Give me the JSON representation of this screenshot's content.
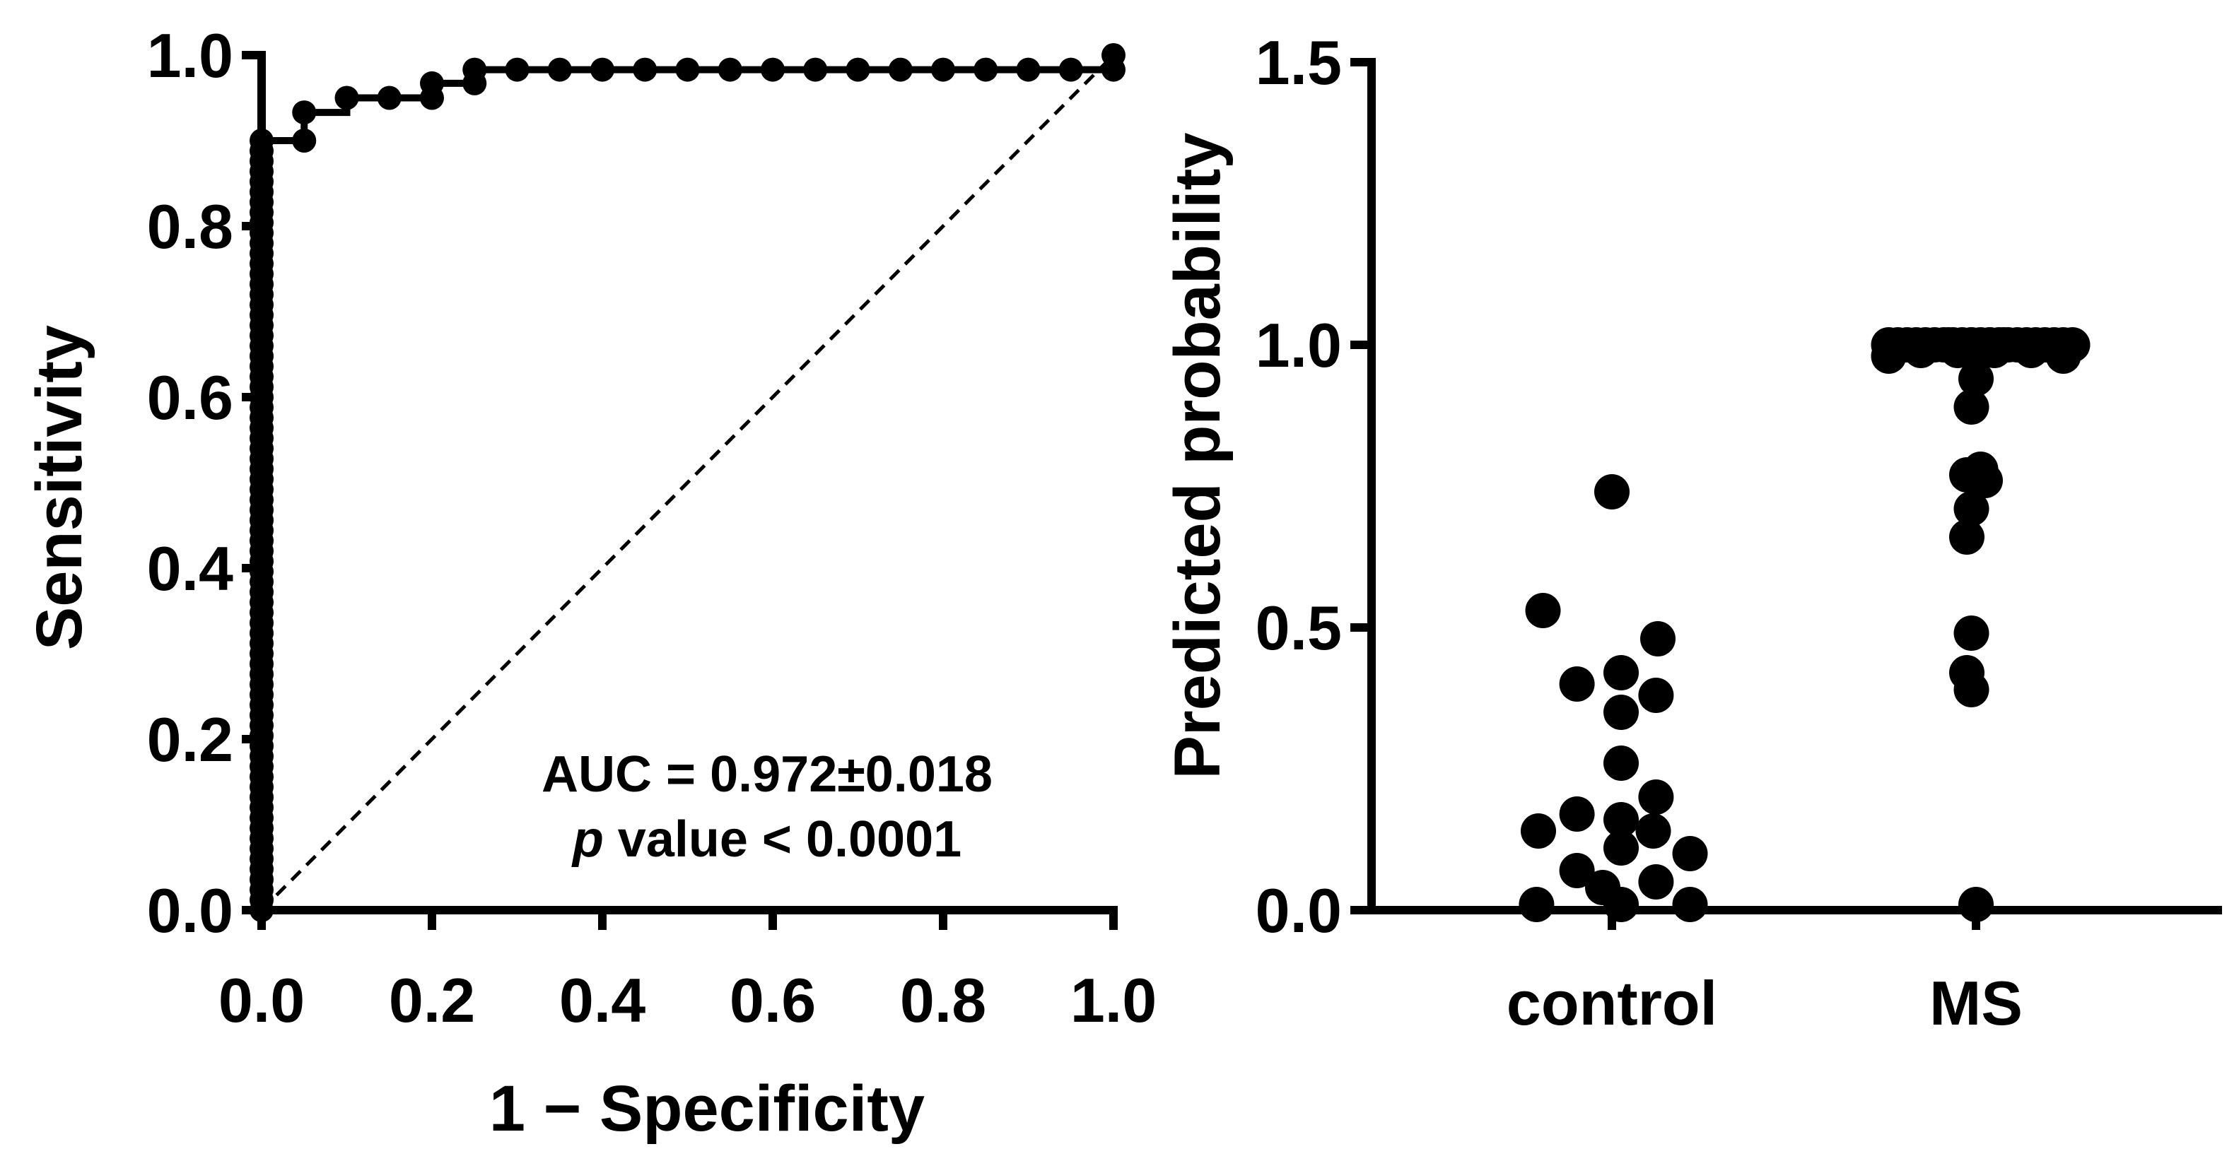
{
  "chart_data": [
    {
      "type": "line",
      "xlabel": "1 − Specificity",
      "ylabel": "Sensitivity",
      "xlim": [
        0,
        1
      ],
      "ylim": [
        0,
        1
      ],
      "xticks": [
        "0.0",
        "0.2",
        "0.4",
        "0.6",
        "0.8",
        "1.0"
      ],
      "yticks": [
        "0.0",
        "0.2",
        "0.4",
        "0.6",
        "0.8",
        "1.0"
      ],
      "annotation": {
        "auc_text": "AUC = 0.972±0.018",
        "p_italic": "p",
        "p_rest": " value < 0.0001"
      },
      "reference_line": [
        [
          0,
          0
        ],
        [
          1,
          1
        ]
      ],
      "x": [
        0,
        0,
        0,
        0,
        0,
        0,
        0,
        0,
        0,
        0,
        0,
        0,
        0,
        0,
        0,
        0,
        0,
        0,
        0,
        0,
        0,
        0,
        0,
        0,
        0,
        0,
        0,
        0,
        0,
        0,
        0,
        0,
        0,
        0,
        0,
        0,
        0,
        0,
        0,
        0,
        0,
        0,
        0,
        0,
        0,
        0,
        0,
        0,
        0,
        0,
        0,
        0,
        0,
        0,
        0,
        0,
        0,
        0,
        0,
        0,
        0,
        0,
        0,
        0,
        0,
        0,
        0,
        0,
        0,
        0,
        0,
        0,
        0,
        0,
        0,
        0,
        0.05,
        0.05,
        0.1,
        0.15,
        0.2,
        0.2,
        0.25,
        0.25,
        0.3,
        0.35,
        0.4,
        0.45,
        0.5,
        0.55,
        0.6,
        0.65,
        0.7,
        0.75,
        0.8,
        0.85,
        0.9,
        0.95,
        1.0,
        1.0
      ],
      "y": [
        0.0,
        0.012,
        0.024,
        0.036,
        0.048,
        0.06,
        0.072,
        0.084,
        0.096,
        0.108,
        0.12,
        0.132,
        0.144,
        0.156,
        0.168,
        0.18,
        0.192,
        0.204,
        0.216,
        0.228,
        0.24,
        0.252,
        0.264,
        0.276,
        0.288,
        0.3,
        0.312,
        0.324,
        0.336,
        0.348,
        0.36,
        0.372,
        0.384,
        0.396,
        0.408,
        0.42,
        0.432,
        0.444,
        0.456,
        0.468,
        0.48,
        0.492,
        0.504,
        0.516,
        0.528,
        0.54,
        0.552,
        0.564,
        0.576,
        0.588,
        0.6,
        0.612,
        0.624,
        0.636,
        0.648,
        0.66,
        0.672,
        0.684,
        0.696,
        0.708,
        0.72,
        0.732,
        0.744,
        0.756,
        0.768,
        0.78,
        0.792,
        0.804,
        0.816,
        0.828,
        0.84,
        0.852,
        0.864,
        0.876,
        0.888,
        0.9,
        0.9,
        0.933,
        0.95,
        0.95,
        0.95,
        0.967,
        0.967,
        0.983,
        0.983,
        0.983,
        0.983,
        0.983,
        0.983,
        0.983,
        0.983,
        0.983,
        0.983,
        0.983,
        0.983,
        0.983,
        0.983,
        0.983,
        0.983,
        1.0
      ]
    },
    {
      "type": "scatter",
      "ylabel": "Predicted probability",
      "ylim": [
        0,
        1.5
      ],
      "yticks": [
        "0.0",
        "0.5",
        "1.0",
        "1.5"
      ],
      "categories": [
        "control",
        "MS"
      ],
      "series": [
        {
          "name": "control",
          "values": [
            0.74,
            0.53,
            0.48,
            0.42,
            0.4,
            0.38,
            0.35,
            0.26,
            0.2,
            0.17,
            0.16,
            0.14,
            0.14,
            0.11,
            0.1,
            0.07,
            0.05,
            0.04,
            0.01,
            0.01,
            0.01
          ],
          "offsets": [
            0,
            -0.75,
            0.5,
            0.1,
            -0.38,
            0.48,
            0.1,
            0.1,
            0.48,
            -0.38,
            0.1,
            -0.8,
            0.45,
            0.1,
            0.85,
            -0.38,
            0.48,
            -0.1,
            -0.82,
            0.85,
            0.1
          ]
        },
        {
          "name": "MS",
          "values": [
            1.0,
            1.0,
            1.0,
            1.0,
            1.0,
            1.0,
            1.0,
            1.0,
            1.0,
            1.0,
            1.0,
            1.0,
            1.0,
            1.0,
            1.0,
            1.0,
            1.0,
            1.0,
            1.0,
            1.0,
            1.0,
            1.0,
            1.0,
            1.0,
            1.0,
            0.99,
            0.99,
            0.99,
            0.99,
            0.98,
            0.98,
            0.94,
            0.89,
            0.78,
            0.77,
            0.76,
            0.71,
            0.66,
            0.49,
            0.42,
            0.39,
            0.01
          ],
          "offsets": [
            -0.95,
            -0.85,
            -0.75,
            -0.65,
            -0.55,
            -0.45,
            -0.35,
            -0.25,
            -0.15,
            -0.05,
            0.05,
            0.15,
            0.25,
            0.35,
            0.45,
            0.55,
            0.65,
            0.75,
            0.85,
            0.95,
            1.05,
            -0.05,
            0.15,
            -0.3,
            0.3,
            -0.6,
            0.6,
            -0.2,
            0.2,
            -0.95,
            0.95,
            0.0,
            -0.05,
            0.05,
            -0.1,
            0.1,
            -0.05,
            -0.1,
            -0.05,
            -0.1,
            -0.05,
            0.0
          ]
        }
      ]
    }
  ]
}
